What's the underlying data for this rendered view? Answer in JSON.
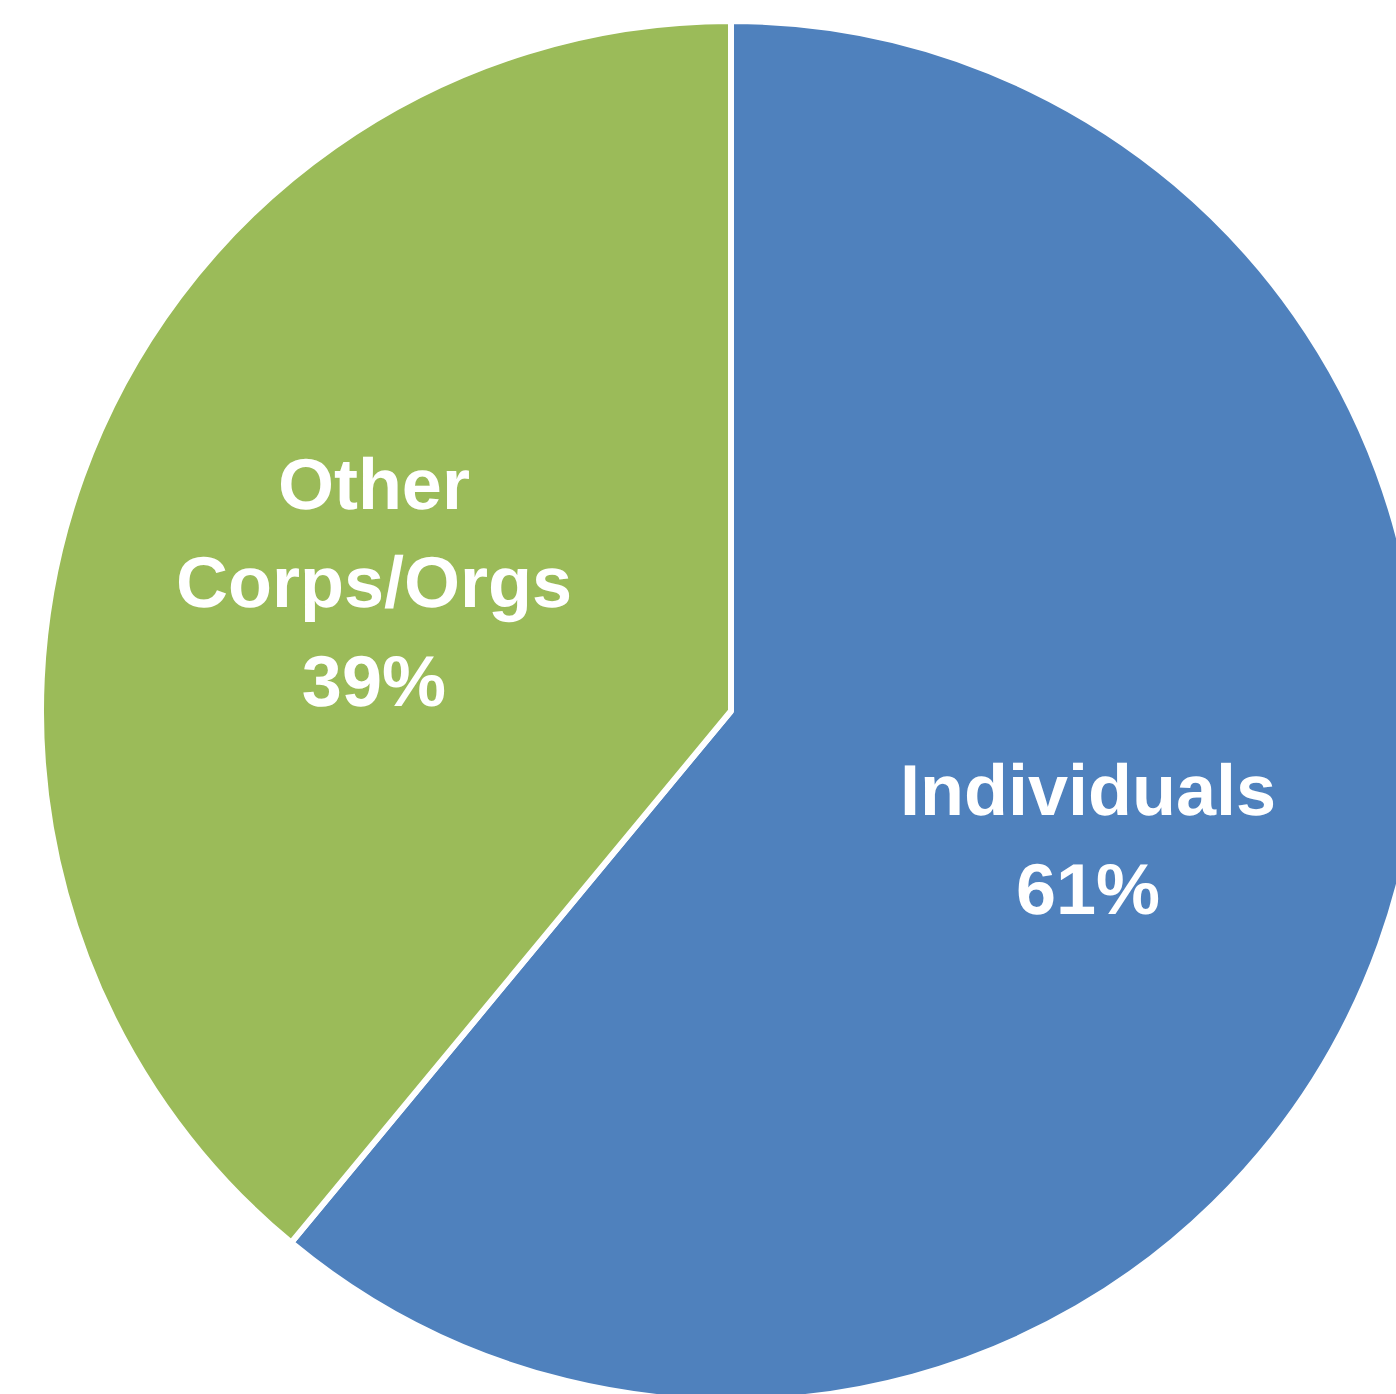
{
  "chart_data": {
    "type": "pie",
    "categories": [
      "Individuals",
      "Other Corps/Orgs"
    ],
    "values": [
      61,
      39
    ],
    "colors": [
      "#4f81bd",
      "#9bbb59"
    ],
    "value_labels": [
      "61%",
      "39%"
    ],
    "legend": false
  }
}
